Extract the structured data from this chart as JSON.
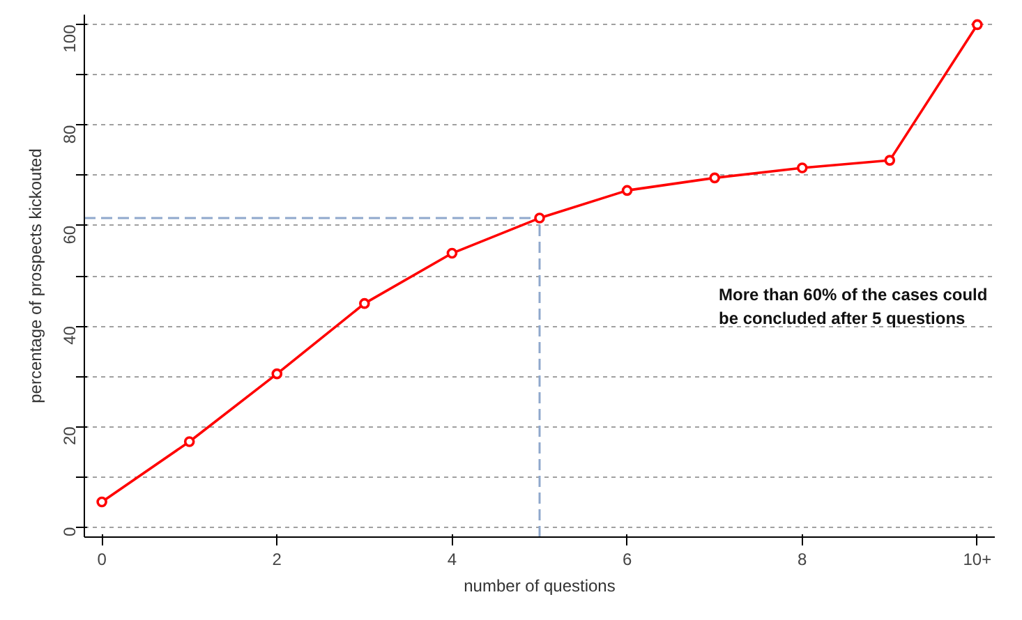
{
  "chart_data": {
    "type": "line",
    "xlabel": "number of questions",
    "ylabel": "percentage of prospects kickouted",
    "x": [
      0,
      1,
      2,
      3,
      4,
      5,
      6,
      7,
      8,
      9,
      10
    ],
    "series": [
      {
        "color": "#ff0000",
        "values": [
          5,
          17,
          30.5,
          44.5,
          54.5,
          61.5,
          67,
          69.5,
          71.5,
          73,
          100
        ]
      }
    ],
    "marker": "circle",
    "line_style": "solid",
    "xlim": [
      -0.2,
      10.2
    ],
    "xticks": [
      0,
      2,
      4,
      6,
      8,
      {
        "value": 10,
        "label": "10+"
      }
    ],
    "ylim": [
      -2,
      102
    ],
    "yticks": [
      0,
      {
        "value": 10,
        "label": null
      },
      20,
      {
        "value": 30,
        "label": null
      },
      40,
      {
        "value": 50,
        "label": null
      },
      60,
      {
        "value": 70,
        "label": null
      },
      80,
      {
        "value": 90,
        "label": null
      },
      100
    ],
    "grid": "y",
    "ref_lines": [
      {
        "axis": "y",
        "value": 61.5,
        "color": "#8fa8cc",
        "line_style": "dashed"
      },
      {
        "axis": "x",
        "value": 5,
        "color": "#8fa8cc",
        "line_style": "dashed"
      }
    ],
    "annotations": [
      "More than 60% of the cases could be concluded after 5 questions"
    ]
  }
}
